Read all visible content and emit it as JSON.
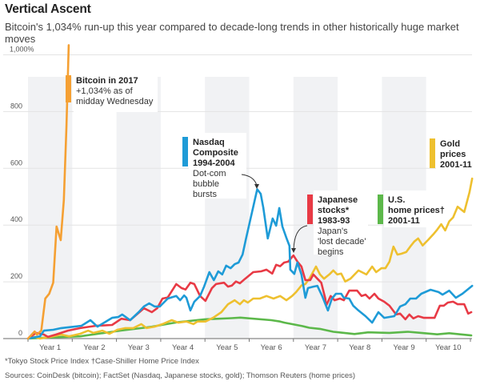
{
  "title": "Vertical Ascent",
  "subtitle": "Bitcoin's 1,034% run-up this year compared to decade-long trends in other historically huge market moves",
  "footnotes": {
    "note1": "*Tokyo Stock Price Index   †Case-Shiller Home Price Index",
    "note2": "Sources: CoinDesk (bitcoin); FactSet (Nasdaq, Japanese stocks, gold); Thomson Reuters (home prices)"
  },
  "chart_data": {
    "type": "line",
    "title": "Vertical Ascent",
    "xlabel": "",
    "ylabel": "",
    "xlim": [
      0,
      10
    ],
    "ylim": [
      0,
      1000
    ],
    "grid": true,
    "y_ticks": [
      {
        "value": 0,
        "label": "0"
      },
      {
        "value": 200,
        "label": "200"
      },
      {
        "value": 400,
        "label": "400"
      },
      {
        "value": 600,
        "label": "600"
      },
      {
        "value": 800,
        "label": "800"
      },
      {
        "value": 1000,
        "label": "1,000%"
      }
    ],
    "x_categories": [
      "Year 1",
      "Year 2",
      "Year 3",
      "Year 4",
      "Year 5",
      "Year 6",
      "Year 7",
      "Year 8",
      "Year 9",
      "Year 10"
    ],
    "shaded_years": [
      1,
      3,
      5,
      7,
      9
    ],
    "series": [
      {
        "id": "bitcoin",
        "name": "Bitcoin in 2017",
        "color": "#F5A033",
        "label_lines": [
          {
            "text": "Bitcoin in 2017",
            "bold": true
          },
          {
            "text": "+1,034% as of",
            "bold": false
          },
          {
            "text": "midday Wednesday",
            "bold": false
          }
        ],
        "x": [
          0,
          0.15,
          0.2,
          0.3,
          0.39,
          0.48,
          0.57,
          0.645,
          0.74,
          0.81,
          0.87,
          0.92
        ],
        "y": [
          0,
          25,
          14,
          28,
          141,
          158,
          197,
          395,
          347,
          488,
          750,
          1034
        ]
      },
      {
        "id": "nasdaq",
        "name": "Nasdaq Composite 1994-2004",
        "color": "#1E9BD7",
        "label_lines": [
          {
            "text": "Nasdaq",
            "bold": true
          },
          {
            "text": "Composite",
            "bold": true
          },
          {
            "text": "1994-2004",
            "bold": true
          },
          {
            "text": "Dot-com",
            "bold": false
          },
          {
            "text": "bubble",
            "bold": false
          },
          {
            "text": "bursts",
            "bold": false
          }
        ],
        "annotation": "Dot-com bubble bursts",
        "x": [
          0,
          0.27,
          0.36,
          0.57,
          0.75,
          1.05,
          1.21,
          1.41,
          1.57,
          1.75,
          1.9,
          2.04,
          2.13,
          2.31,
          2.5,
          2.62,
          2.74,
          2.86,
          2.98,
          3.16,
          3.35,
          3.44,
          3.53,
          3.58,
          3.67,
          3.76,
          3.89,
          3.98,
          4.1,
          4.2,
          4.3,
          4.39,
          4.48,
          4.58,
          4.67,
          4.76,
          4.85,
          4.92,
          5.18,
          5.26,
          5.32,
          5.42,
          5.53,
          5.61,
          5.68,
          5.75,
          5.84,
          5.91,
          5.93,
          6.02,
          6.09,
          6.18,
          6.27,
          6.33,
          6.45,
          6.54,
          6.65,
          6.78,
          6.87,
          6.96,
          7.08,
          7.14,
          7.26,
          7.35,
          7.47,
          7.63,
          7.78,
          7.92,
          8.05,
          8.28,
          8.41,
          8.53,
          8.64,
          8.77,
          8.89,
          9.1,
          9.28,
          9.37,
          9.52,
          9.67,
          9.82,
          10.04
        ],
        "y": [
          0,
          8,
          28,
          31,
          37,
          42,
          45,
          65,
          42,
          59,
          73,
          76,
          85,
          65,
          93,
          113,
          124,
          113,
          113,
          141,
          150,
          135,
          152,
          144,
          99,
          130,
          150,
          183,
          234,
          206,
          237,
          226,
          257,
          248,
          262,
          268,
          296,
          347,
          526,
          510,
          460,
          353,
          423,
          398,
          460,
          395,
          355,
          327,
          243,
          228,
          268,
          226,
          144,
          178,
          183,
          186,
          150,
          99,
          141,
          158,
          158,
          144,
          141,
          116,
          99,
          79,
          56,
          93,
          73,
          79,
          113,
          121,
          141,
          141,
          158,
          172,
          164,
          155,
          169,
          144,
          158,
          186
        ]
      },
      {
        "id": "japan",
        "name": "Japanese stocks* 1983-93",
        "color": "#E83A45",
        "label_lines": [
          {
            "text": "Japanese",
            "bold": true
          },
          {
            "text": "stocks*",
            "bold": true
          },
          {
            "text": "1983-93",
            "bold": true
          },
          {
            "text": "Japan's",
            "bold": false
          },
          {
            "text": "'lost decade'",
            "bold": false
          },
          {
            "text": "begins",
            "bold": false
          }
        ],
        "annotation": "Japan's 'lost decade' begins",
        "x": [
          0,
          0.18,
          0.36,
          0.45,
          0.63,
          0.9,
          1.18,
          1.54,
          1.9,
          2.11,
          2.31,
          2.62,
          2.8,
          2.92,
          3.04,
          3.16,
          3.35,
          3.47,
          3.56,
          3.67,
          3.76,
          3.89,
          4.01,
          4.16,
          4.25,
          4.43,
          4.52,
          4.61,
          4.7,
          4.79,
          4.91,
          5.09,
          5.27,
          5.39,
          5.52,
          5.61,
          5.7,
          5.79,
          5.88,
          6.0,
          6.09,
          6.18,
          6.27,
          6.38,
          6.45,
          6.54,
          6.63,
          6.72,
          6.74,
          6.84,
          6.93,
          7.05,
          7.14,
          7.26,
          7.44,
          7.54,
          7.63,
          7.72,
          7.83,
          7.92,
          8.05,
          8.17,
          8.32,
          8.41,
          8.53,
          8.62,
          8.71,
          8.82,
          8.95,
          9.19,
          9.31,
          9.4,
          9.49,
          9.61,
          9.71,
          9.86,
          9.95,
          10.02
        ],
        "y": [
          0,
          20,
          14,
          6,
          14,
          28,
          37,
          45,
          48,
          70,
          65,
          107,
          93,
          107,
          141,
          145,
          192,
          178,
          173,
          197,
          192,
          150,
          133,
          178,
          192,
          197,
          183,
          187,
          201,
          195,
          211,
          234,
          237,
          243,
          229,
          260,
          255,
          268,
          271,
          293,
          271,
          254,
          206,
          206,
          226,
          211,
          197,
          141,
          116,
          150,
          135,
          141,
          135,
          169,
          169,
          150,
          155,
          141,
          158,
          141,
          130,
          116,
          85,
          88,
          68,
          85,
          71,
          79,
          73,
          73,
          116,
          116,
          127,
          130,
          121,
          121,
          88,
          93
        ]
      },
      {
        "id": "home",
        "name": "U.S. home prices† 2001-11",
        "color": "#5CB84A",
        "label_lines": [
          {
            "text": "U.S.",
            "bold": true
          },
          {
            "text": "home prices†",
            "bold": true
          },
          {
            "text": "2001-11",
            "bold": true
          }
        ],
        "x": [
          0,
          0.5,
          1.18,
          2.08,
          2.62,
          2.8,
          3.4,
          4.0,
          4.6,
          4.8,
          5.5,
          5.7,
          5.8,
          6.2,
          6.36,
          6.6,
          6.9,
          7.02,
          7.38,
          7.69,
          8.17,
          8.59,
          8.89,
          9.25,
          9.52,
          10.02
        ],
        "y": [
          0,
          4,
          8,
          28,
          38,
          42,
          58,
          68,
          72,
          74,
          65,
          60,
          56,
          44,
          38,
          34,
          24,
          22,
          16,
          22,
          20,
          24,
          20,
          15,
          19,
          11
        ]
      },
      {
        "id": "gold",
        "name": "Gold prices 2001-11",
        "color": "#EEC02F",
        "label_lines": [
          {
            "text": "Gold",
            "bold": true
          },
          {
            "text": "prices",
            "bold": true
          },
          {
            "text": "2001-11",
            "bold": true
          }
        ],
        "x": [
          0,
          0.15,
          0.27,
          0.51,
          0.75,
          0.93,
          1.18,
          1.36,
          1.48,
          1.68,
          1.84,
          2.02,
          2.2,
          2.38,
          2.56,
          2.68,
          2.86,
          3.04,
          3.25,
          3.4,
          3.58,
          3.74,
          3.83,
          4.01,
          4.19,
          4.37,
          4.52,
          4.67,
          4.79,
          4.88,
          4.97,
          5.09,
          5.24,
          5.39,
          5.55,
          5.7,
          5.84,
          5.97,
          6.06,
          6.18,
          6.27,
          6.36,
          6.51,
          6.6,
          6.69,
          6.81,
          6.9,
          6.99,
          7.08,
          7.17,
          7.29,
          7.47,
          7.65,
          7.78,
          7.87,
          7.99,
          8.08,
          8.17,
          8.26,
          8.35,
          8.44,
          8.55,
          8.64,
          8.73,
          8.82,
          8.92,
          9.04,
          9.16,
          9.25,
          9.34,
          9.43,
          9.52,
          9.61,
          9.71,
          9.86,
          9.98,
          10.04
        ],
        "y": [
          0,
          6,
          0,
          6,
          14,
          8,
          17,
          28,
          20,
          28,
          17,
          31,
          37,
          37,
          51,
          37,
          42,
          51,
          65,
          56,
          60,
          51,
          60,
          60,
          74,
          93,
          121,
          135,
          121,
          135,
          127,
          141,
          141,
          150,
          141,
          150,
          135,
          150,
          164,
          187,
          192,
          211,
          254,
          226,
          211,
          226,
          240,
          226,
          229,
          201,
          211,
          240,
          226,
          254,
          234,
          248,
          248,
          271,
          324,
          296,
          299,
          305,
          324,
          342,
          353,
          328,
          347,
          367,
          384,
          403,
          381,
          413,
          427,
          465,
          446,
          516,
          564
        ]
      }
    ]
  }
}
